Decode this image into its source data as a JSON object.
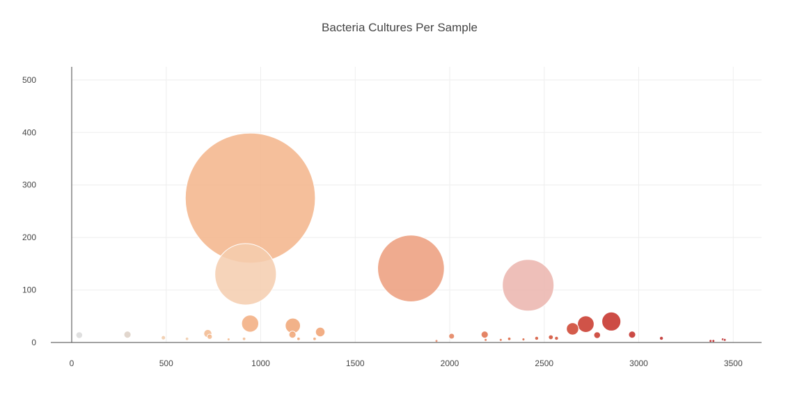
{
  "chart_data": {
    "type": "scatter",
    "subtype": "bubble",
    "title": "Bacteria Cultures Per Sample",
    "xlabel": "",
    "ylabel": "",
    "xlim": [
      -100,
      3650
    ],
    "ylim": [
      -8,
      525
    ],
    "x_ticks": [
      0,
      500,
      1000,
      1500,
      2000,
      2500,
      3000,
      3500
    ],
    "y_ticks": [
      0,
      100,
      200,
      300,
      400,
      500
    ],
    "grid": true,
    "legend": "none",
    "series": [
      {
        "name": "Bacteria Cultures",
        "points": [
          {
            "x": 40,
            "y": 14,
            "size": 14,
            "color": "#d9d9d9"
          },
          {
            "x": 295,
            "y": 15,
            "size": 15,
            "color": "#dccfc4"
          },
          {
            "x": 485,
            "y": 9,
            "size": 9,
            "color": "#f0c9a7"
          },
          {
            "x": 610,
            "y": 7,
            "size": 7,
            "color": "#f0c9a7"
          },
          {
            "x": 720,
            "y": 17,
            "size": 17,
            "color": "#f2b88e"
          },
          {
            "x": 730,
            "y": 11,
            "size": 11,
            "color": "#f2b88e"
          },
          {
            "x": 830,
            "y": 6,
            "size": 6,
            "color": "#f2b88e"
          },
          {
            "x": 912,
            "y": 7,
            "size": 7,
            "color": "#f2b88e"
          },
          {
            "x": 945,
            "y": 275,
            "size": 275,
            "color": "#f3b48a"
          },
          {
            "x": 920,
            "y": 130,
            "size": 130,
            "color": "#f5cdae"
          },
          {
            "x": 944,
            "y": 36,
            "size": 36,
            "color": "#f2ac7e"
          },
          {
            "x": 1170,
            "y": 32,
            "size": 32,
            "color": "#f0a574"
          },
          {
            "x": 1168,
            "y": 15,
            "size": 15,
            "color": "#f0a574"
          },
          {
            "x": 1200,
            "y": 7,
            "size": 7,
            "color": "#f0a574"
          },
          {
            "x": 1285,
            "y": 7,
            "size": 7,
            "color": "#f0a574"
          },
          {
            "x": 1315,
            "y": 20,
            "size": 20,
            "color": "#f0a070"
          },
          {
            "x": 1795,
            "y": 141,
            "size": 141,
            "color": "#ec9c7b"
          },
          {
            "x": 1930,
            "y": 3,
            "size": 3,
            "color": "#e98b6a"
          },
          {
            "x": 2010,
            "y": 12,
            "size": 12,
            "color": "#e37e58"
          },
          {
            "x": 2185,
            "y": 15,
            "size": 15,
            "color": "#df6e4a"
          },
          {
            "x": 2190,
            "y": 5,
            "size": 5,
            "color": "#df6e4a"
          },
          {
            "x": 2270,
            "y": 5,
            "size": 5,
            "color": "#df6e4a"
          },
          {
            "x": 2315,
            "y": 7,
            "size": 7,
            "color": "#d9623e"
          },
          {
            "x": 2390,
            "y": 6,
            "size": 6,
            "color": "#d9623e"
          },
          {
            "x": 2415,
            "y": 109,
            "size": 109,
            "color": "#ebb4ad"
          },
          {
            "x": 2460,
            "y": 8,
            "size": 8,
            "color": "#d45235"
          },
          {
            "x": 2535,
            "y": 10,
            "size": 10,
            "color": "#d04a30"
          },
          {
            "x": 2565,
            "y": 8,
            "size": 8,
            "color": "#d04a30"
          },
          {
            "x": 2650,
            "y": 26,
            "size": 26,
            "color": "#cc3f2c"
          },
          {
            "x": 2720,
            "y": 35,
            "size": 35,
            "color": "#c83528"
          },
          {
            "x": 2780,
            "y": 14,
            "size": 14,
            "color": "#c83528"
          },
          {
            "x": 2855,
            "y": 40,
            "size": 40,
            "color": "#c42d25"
          },
          {
            "x": 2965,
            "y": 15,
            "size": 15,
            "color": "#c22a24"
          },
          {
            "x": 3120,
            "y": 8,
            "size": 8,
            "color": "#bd2522"
          },
          {
            "x": 3380,
            "y": 3,
            "size": 3,
            "color": "#b81f20"
          },
          {
            "x": 3395,
            "y": 3,
            "size": 3,
            "color": "#b81f20"
          },
          {
            "x": 3445,
            "y": 6,
            "size": 6,
            "color": "#b81f20"
          },
          {
            "x": 3455,
            "y": 5,
            "size": 5,
            "color": "#b81f20"
          }
        ]
      }
    ]
  }
}
